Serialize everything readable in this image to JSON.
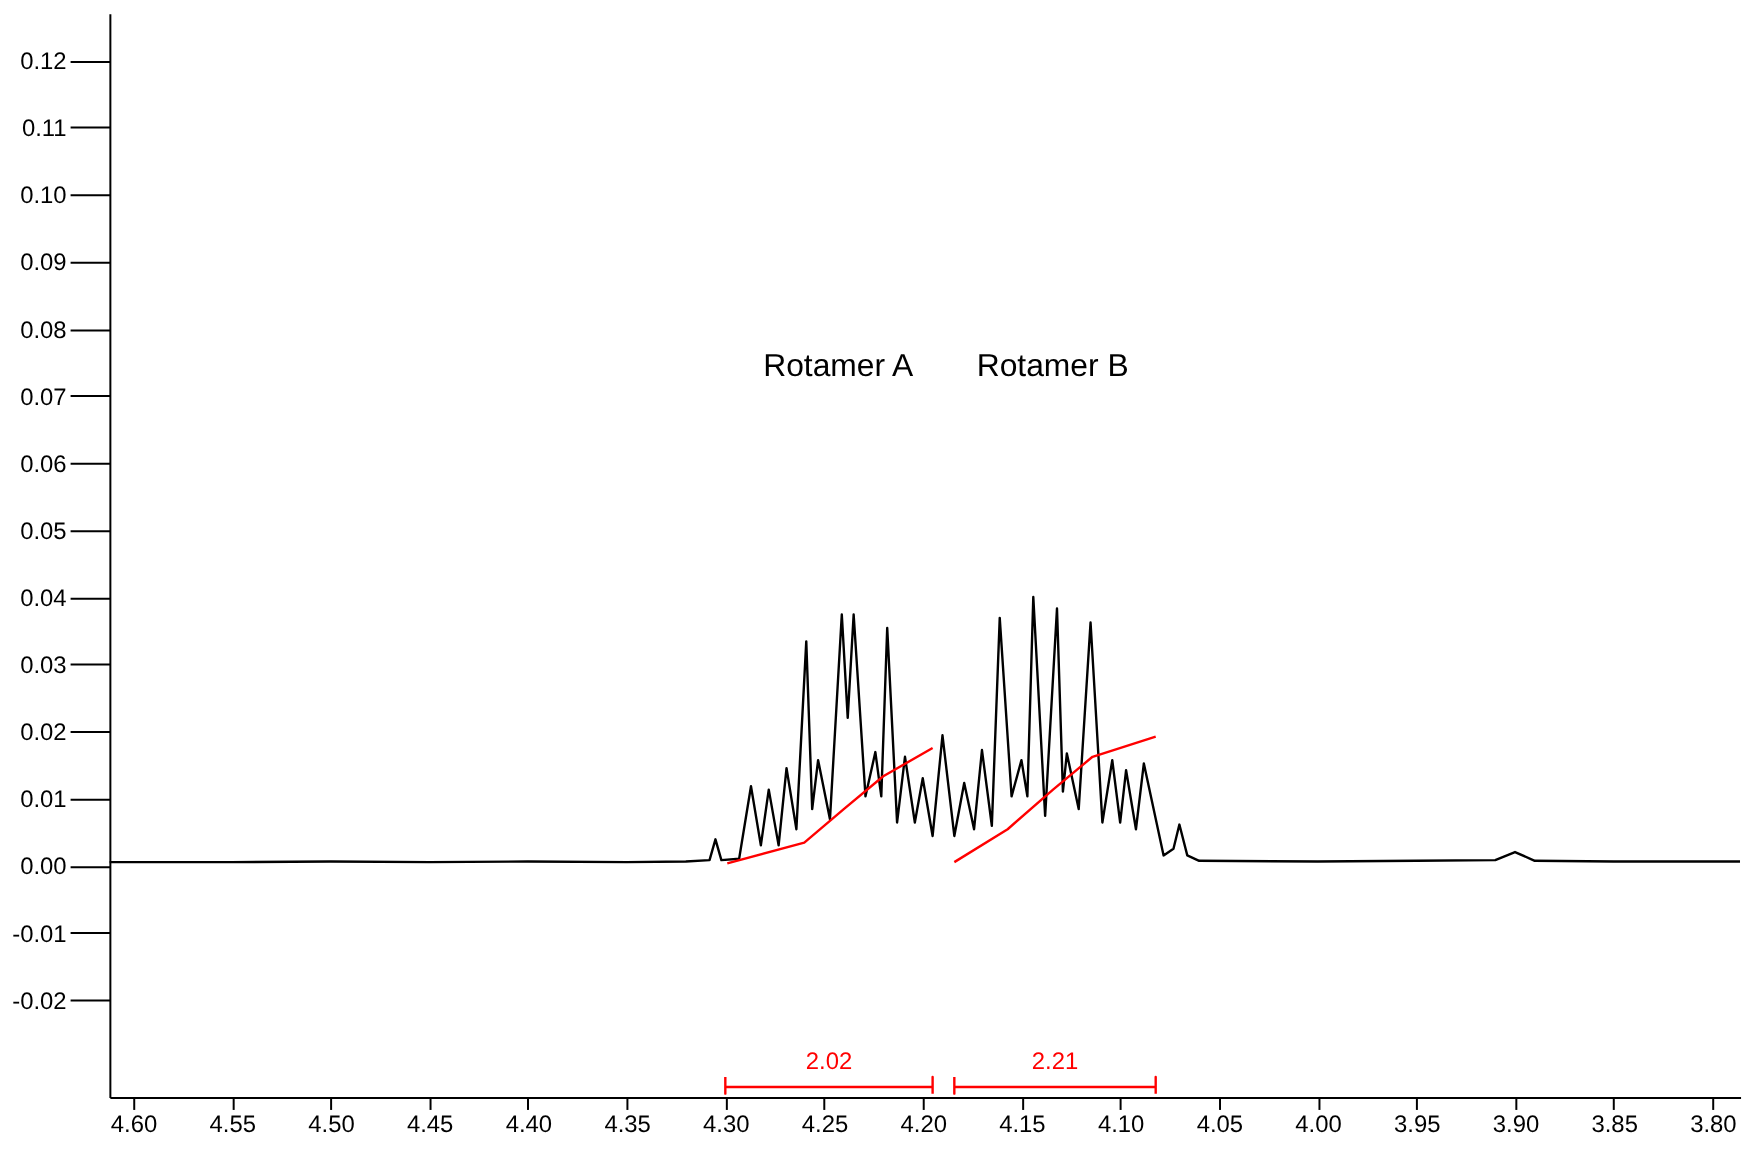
{
  "chart_data": {
    "type": "line",
    "xlim": [
      4.612,
      3.786
    ],
    "ylim": [
      -0.0345,
      0.127
    ],
    "xticks": [
      {
        "value": 4.6,
        "label": "4.60"
      },
      {
        "value": 4.55,
        "label": "4.55"
      },
      {
        "value": 4.5,
        "label": "4.50"
      },
      {
        "value": 4.45,
        "label": "4.45"
      },
      {
        "value": 4.4,
        "label": "4.40"
      },
      {
        "value": 4.35,
        "label": "4.35"
      },
      {
        "value": 4.3,
        "label": "4.30"
      },
      {
        "value": 4.25,
        "label": "4.25"
      },
      {
        "value": 4.2,
        "label": "4.20"
      },
      {
        "value": 4.15,
        "label": "4.15"
      },
      {
        "value": 4.1,
        "label": "4.10"
      },
      {
        "value": 4.05,
        "label": "4.05"
      },
      {
        "value": 4.0,
        "label": "4.00"
      },
      {
        "value": 3.95,
        "label": "3.95"
      },
      {
        "value": 3.9,
        "label": "3.90"
      },
      {
        "value": 3.85,
        "label": "3.85"
      },
      {
        "value": 3.8,
        "label": "3.80"
      }
    ],
    "yticks": [
      {
        "value": 0.12,
        "label": "0.12"
      },
      {
        "value": 0.11,
        "label": "0.11"
      },
      {
        "value": 0.1,
        "label": "0.10"
      },
      {
        "value": 0.09,
        "label": "0.09"
      },
      {
        "value": 0.08,
        "label": "0.08"
      },
      {
        "value": 0.07,
        "label": "0.07"
      },
      {
        "value": 0.06,
        "label": "0.06"
      },
      {
        "value": 0.05,
        "label": "0.05"
      },
      {
        "value": 0.04,
        "label": "0.04"
      },
      {
        "value": 0.03,
        "label": "0.03"
      },
      {
        "value": 0.02,
        "label": "0.02"
      },
      {
        "value": 0.01,
        "label": "0.01"
      },
      {
        "value": 0.0,
        "label": "0.00"
      },
      {
        "value": -0.01,
        "label": "-0.01"
      },
      {
        "value": -0.02,
        "label": "-0.02"
      }
    ],
    "grid": false,
    "marker": "none",
    "line_style": "solid",
    "series": [
      {
        "color": "#000000",
        "x": [
          4.612,
          4.55,
          4.5,
          4.45,
          4.4,
          4.35,
          4.32,
          4.308,
          4.305,
          4.302,
          4.293,
          4.287,
          4.282,
          4.278,
          4.273,
          4.269,
          4.264,
          4.259,
          4.256,
          4.253,
          4.247,
          4.241,
          4.238,
          4.235,
          4.229,
          4.224,
          4.221,
          4.218,
          4.213,
          4.209,
          4.204,
          4.2,
          4.195,
          4.19,
          4.184,
          4.179,
          4.174,
          4.17,
          4.165,
          4.161,
          4.155,
          4.15,
          4.147,
          4.144,
          4.138,
          4.132,
          4.129,
          4.127,
          4.121,
          4.115,
          4.109,
          4.104,
          4.1,
          4.097,
          4.092,
          4.088,
          4.078,
          4.073,
          4.07,
          4.066,
          4.06,
          4.0,
          3.95,
          3.91,
          3.9,
          3.89,
          3.85,
          3.786
        ],
        "values": [
          0.0005,
          0.0005,
          0.0006,
          0.0005,
          0.0006,
          0.0005,
          0.0006,
          0.0008,
          0.0039,
          0.0008,
          0.001,
          0.0118,
          0.003,
          0.0113,
          0.003,
          0.0145,
          0.0054,
          0.0334,
          0.0084,
          0.0157,
          0.0069,
          0.0374,
          0.022,
          0.0374,
          0.0103,
          0.0169,
          0.0103,
          0.0354,
          0.0064,
          0.0162,
          0.0064,
          0.013,
          0.0044,
          0.0194,
          0.0044,
          0.0123,
          0.0054,
          0.0172,
          0.0059,
          0.0369,
          0.0103,
          0.0157,
          0.0103,
          0.04,
          0.0074,
          0.0383,
          0.011,
          0.0167,
          0.0084,
          0.0362,
          0.0064,
          0.0157,
          0.0064,
          0.0142,
          0.0054,
          0.0152,
          0.0015,
          0.0025,
          0.0061,
          0.0015,
          0.0007,
          0.0006,
          0.0007,
          0.0008,
          0.002,
          0.0007,
          0.0006,
          0.0006
        ]
      },
      {
        "color": "#ff0000",
        "x": [
          4.299,
          4.26,
          4.24,
          4.22,
          4.195
        ],
        "values": [
          0.0003,
          0.0034,
          0.0084,
          0.0133,
          0.0175
        ]
      },
      {
        "color": "#ff0000",
        "x": [
          4.184,
          4.157,
          4.134,
          4.114,
          4.082
        ],
        "values": [
          0.0005,
          0.0054,
          0.0113,
          0.0162,
          0.0192
        ]
      },
      {
        "color": "#ff0000",
        "x": [
          4.3,
          4.3,
          4.3,
          4.195,
          4.195,
          4.195
        ],
        "values": [
          -0.0315,
          -0.034,
          -0.033,
          -0.033,
          -0.0315,
          -0.034
        ]
      },
      {
        "color": "#ff0000",
        "x": [
          4.184,
          4.184,
          4.184,
          4.082,
          4.082,
          4.082
        ],
        "values": [
          -0.0315,
          -0.034,
          -0.033,
          -0.033,
          -0.0315,
          -0.034
        ]
      }
    ],
    "annotations": [
      "Rotamer A",
      "Rotamer B",
      {
        "text": "2.02",
        "x": 4.2475,
        "y": -0.033
      },
      {
        "text": "2.21",
        "x": 4.133,
        "y": -0.033
      }
    ]
  }
}
